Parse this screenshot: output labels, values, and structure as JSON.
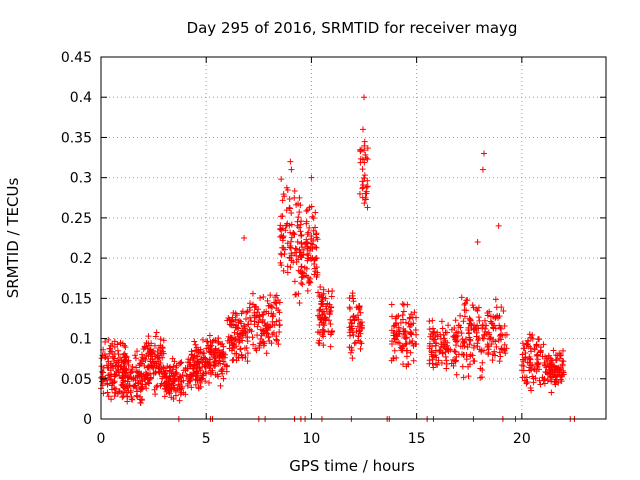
{
  "chart_data": {
    "type": "scatter",
    "title": "Day 295 of 2016, SRMTID for receiver mayg",
    "xlabel": "GPS time / hours",
    "ylabel": "SRMTID / TECUs",
    "xlim": [
      0,
      24
    ],
    "ylim": [
      0,
      0.45
    ],
    "xticks": [
      0,
      5,
      10,
      15,
      20
    ],
    "yticks": [
      0,
      0.05,
      0.1,
      0.15,
      0.2,
      0.25,
      0.3,
      0.35,
      0.4,
      0.45
    ],
    "grid": true,
    "marker": "+",
    "series_color": "#ff0000",
    "clusters": [
      {
        "x_range": [
          0.0,
          1.2
        ],
        "y_range": [
          0.02,
          0.1
        ],
        "count": 120
      },
      {
        "x_range": [
          1.0,
          2.0
        ],
        "y_range": [
          0.015,
          0.09
        ],
        "count": 110
      },
      {
        "x_range": [
          2.0,
          3.0
        ],
        "y_range": [
          0.03,
          0.11
        ],
        "count": 110
      },
      {
        "x_range": [
          3.0,
          4.2
        ],
        "y_range": [
          0.02,
          0.08
        ],
        "count": 110
      },
      {
        "x_range": [
          4.2,
          5.0
        ],
        "y_range": [
          0.03,
          0.1
        ],
        "count": 100
      },
      {
        "x_range": [
          5.0,
          6.0
        ],
        "y_range": [
          0.04,
          0.11
        ],
        "count": 90
      },
      {
        "x_range": [
          6.0,
          7.0
        ],
        "y_range": [
          0.06,
          0.14
        ],
        "count": 90
      },
      {
        "x_range": [
          7.0,
          8.5
        ],
        "y_range": [
          0.08,
          0.16
        ],
        "count": 110
      },
      {
        "x_range": [
          8.5,
          9.5
        ],
        "y_range": [
          0.14,
          0.3
        ],
        "count": 90
      },
      {
        "x_range": [
          9.5,
          10.3
        ],
        "y_range": [
          0.15,
          0.28
        ],
        "count": 90
      },
      {
        "x_range": [
          10.3,
          11.0
        ],
        "y_range": [
          0.08,
          0.17
        ],
        "count": 70
      },
      {
        "x_range": [
          11.8,
          12.4
        ],
        "y_range": [
          0.07,
          0.16
        ],
        "count": 60
      },
      {
        "x_range": [
          12.3,
          12.7
        ],
        "y_range": [
          0.25,
          0.36
        ],
        "count": 35
      },
      {
        "x_range": [
          13.8,
          15.0
        ],
        "y_range": [
          0.06,
          0.15
        ],
        "count": 90
      },
      {
        "x_range": [
          15.6,
          17.0
        ],
        "y_range": [
          0.05,
          0.13
        ],
        "count": 100
      },
      {
        "x_range": [
          17.0,
          18.2
        ],
        "y_range": [
          0.04,
          0.16
        ],
        "count": 90
      },
      {
        "x_range": [
          18.2,
          19.3
        ],
        "y_range": [
          0.06,
          0.16
        ],
        "count": 70
      },
      {
        "x_range": [
          20.0,
          21.2
        ],
        "y_range": [
          0.03,
          0.11
        ],
        "count": 90
      },
      {
        "x_range": [
          21.2,
          22.0
        ],
        "y_range": [
          0.03,
          0.09
        ],
        "count": 80
      }
    ],
    "notable_points": [
      {
        "x": 12.5,
        "y": 0.4
      },
      {
        "x": 12.45,
        "y": 0.36
      },
      {
        "x": 18.2,
        "y": 0.33
      },
      {
        "x": 18.15,
        "y": 0.31
      },
      {
        "x": 9.0,
        "y": 0.32
      },
      {
        "x": 9.05,
        "y": 0.31
      },
      {
        "x": 10.0,
        "y": 0.3
      },
      {
        "x": 18.9,
        "y": 0.24
      },
      {
        "x": 6.8,
        "y": 0.225
      },
      {
        "x": 17.9,
        "y": 0.22
      }
    ],
    "baseline_points_x": [
      3.7,
      5.2,
      5.3,
      7.5,
      7.8,
      9.2,
      9.5,
      9.7,
      10.5,
      11.9,
      13.6,
      13.7,
      15.5,
      15.8,
      17.7,
      19.1,
      19.7,
      22.3,
      22.5
    ]
  }
}
